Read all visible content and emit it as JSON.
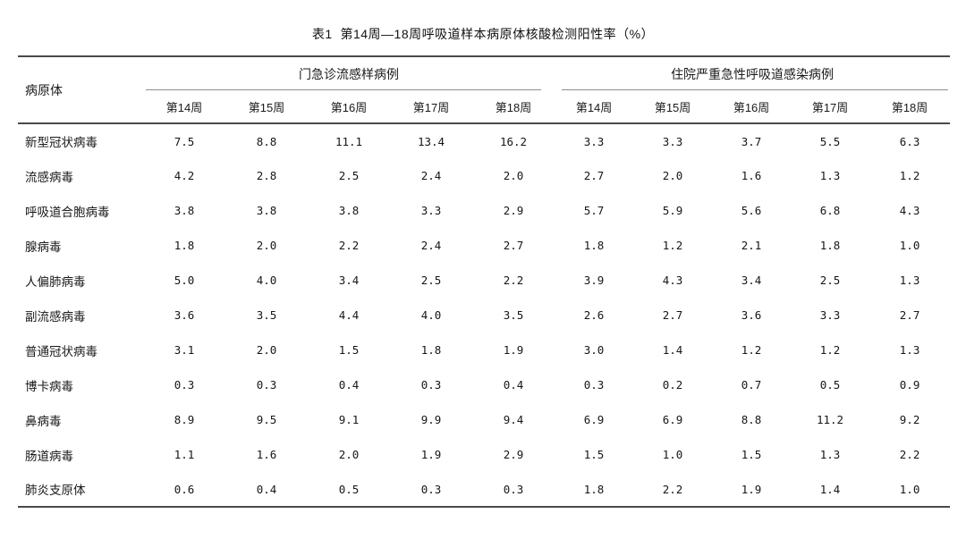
{
  "title": "表1  第14周—18周呼吸道样本病原体核酸检测阳性率（%）",
  "table": {
    "pathogen_header": "病原体",
    "groups": [
      {
        "label": "门急诊流感样病例",
        "weeks": [
          "第14周",
          "第15周",
          "第16周",
          "第17周",
          "第18周"
        ]
      },
      {
        "label": "住院严重急性呼吸道感染病例",
        "weeks": [
          "第14周",
          "第15周",
          "第16周",
          "第17周",
          "第18周"
        ]
      }
    ],
    "rows": [
      {
        "pathogen": "新型冠状病毒",
        "outpatient": [
          "7.5",
          "8.8",
          "11.1",
          "13.4",
          "16.2"
        ],
        "inpatient": [
          "3.3",
          "3.3",
          "3.7",
          "5.5",
          "6.3"
        ]
      },
      {
        "pathogen": "流感病毒",
        "outpatient": [
          "4.2",
          "2.8",
          "2.5",
          "2.4",
          "2.0"
        ],
        "inpatient": [
          "2.7",
          "2.0",
          "1.6",
          "1.3",
          "1.2"
        ]
      },
      {
        "pathogen": "呼吸道合胞病毒",
        "outpatient": [
          "3.8",
          "3.8",
          "3.8",
          "3.3",
          "2.9"
        ],
        "inpatient": [
          "5.7",
          "5.9",
          "5.6",
          "6.8",
          "4.3"
        ]
      },
      {
        "pathogen": "腺病毒",
        "outpatient": [
          "1.8",
          "2.0",
          "2.2",
          "2.4",
          "2.7"
        ],
        "inpatient": [
          "1.8",
          "1.2",
          "2.1",
          "1.8",
          "1.0"
        ]
      },
      {
        "pathogen": "人偏肺病毒",
        "outpatient": [
          "5.0",
          "4.0",
          "3.4",
          "2.5",
          "2.2"
        ],
        "inpatient": [
          "3.9",
          "4.3",
          "3.4",
          "2.5",
          "1.3"
        ]
      },
      {
        "pathogen": "副流感病毒",
        "outpatient": [
          "3.6",
          "3.5",
          "4.4",
          "4.0",
          "3.5"
        ],
        "inpatient": [
          "2.6",
          "2.7",
          "3.6",
          "3.3",
          "2.7"
        ]
      },
      {
        "pathogen": "普通冠状病毒",
        "outpatient": [
          "3.1",
          "2.0",
          "1.5",
          "1.8",
          "1.9"
        ],
        "inpatient": [
          "3.0",
          "1.4",
          "1.2",
          "1.2",
          "1.3"
        ]
      },
      {
        "pathogen": "博卡病毒",
        "outpatient": [
          "0.3",
          "0.3",
          "0.4",
          "0.3",
          "0.4"
        ],
        "inpatient": [
          "0.3",
          "0.2",
          "0.7",
          "0.5",
          "0.9"
        ]
      },
      {
        "pathogen": "鼻病毒",
        "outpatient": [
          "8.9",
          "9.5",
          "9.1",
          "9.9",
          "9.4"
        ],
        "inpatient": [
          "6.9",
          "6.9",
          "8.8",
          "11.2",
          "9.2"
        ]
      },
      {
        "pathogen": "肠道病毒",
        "outpatient": [
          "1.1",
          "1.6",
          "2.0",
          "1.9",
          "2.9"
        ],
        "inpatient": [
          "1.5",
          "1.0",
          "1.5",
          "1.3",
          "2.2"
        ]
      },
      {
        "pathogen": "肺炎支原体",
        "outpatient": [
          "0.6",
          "0.4",
          "0.5",
          "0.3",
          "0.3"
        ],
        "inpatient": [
          "1.8",
          "2.2",
          "1.9",
          "1.4",
          "1.0"
        ]
      }
    ]
  }
}
